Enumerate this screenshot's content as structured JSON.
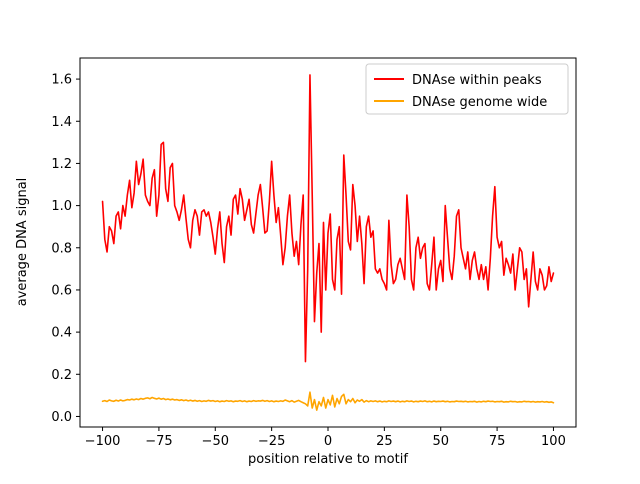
{
  "figure": {
    "xlabel": "position relative to motif",
    "ylabel": "average DNA signal"
  },
  "chart_data": {
    "type": "line",
    "title": "",
    "xlabel": "position relative to motif",
    "ylabel": "average DNA signal",
    "x_start": -100,
    "x_step": 1,
    "n_points": 201,
    "xlim": [
      -110,
      110
    ],
    "ylim": [
      -0.05,
      1.7
    ],
    "xticks": [
      -100,
      -75,
      -50,
      -25,
      0,
      25,
      50,
      75,
      100
    ],
    "yticks": [
      0.0,
      0.2,
      0.4,
      0.6,
      0.8,
      1.0,
      1.2,
      1.4,
      1.6
    ],
    "grid": false,
    "legend_position": "upper right",
    "series": [
      {
        "name": "DNAse within peaks",
        "color": "#ff0000",
        "values": [
          1.02,
          0.84,
          0.78,
          0.9,
          0.88,
          0.82,
          0.95,
          0.97,
          0.89,
          1.0,
          0.95,
          1.05,
          1.12,
          0.99,
          1.06,
          1.21,
          1.1,
          1.15,
          1.22,
          1.05,
          1.02,
          1.0,
          1.13,
          1.17,
          0.95,
          1.05,
          1.29,
          1.3,
          1.08,
          1.02,
          1.18,
          1.2,
          1.0,
          0.97,
          0.93,
          0.98,
          1.05,
          0.94,
          0.84,
          0.8,
          0.93,
          0.98,
          0.95,
          0.86,
          0.97,
          0.98,
          0.95,
          0.97,
          0.92,
          0.85,
          0.77,
          0.89,
          0.97,
          0.82,
          0.73,
          0.9,
          0.95,
          0.86,
          1.03,
          1.05,
          0.96,
          1.08,
          1.03,
          0.93,
          0.98,
          1.03,
          0.91,
          0.87,
          0.96,
          1.05,
          1.1,
          0.99,
          0.87,
          0.88,
          1.02,
          1.21,
          1.05,
          0.92,
          0.99,
          0.86,
          0.72,
          0.8,
          0.95,
          1.05,
          0.87,
          0.76,
          0.83,
          0.72,
          0.91,
          1.05,
          0.26,
          0.7,
          1.62,
          1.05,
          0.45,
          0.68,
          0.82,
          0.4,
          0.92,
          0.6,
          0.87,
          0.96,
          0.65,
          0.6,
          0.84,
          0.9,
          0.58,
          1.24,
          1.05,
          0.83,
          0.79,
          1.1,
          1.0,
          0.83,
          0.95,
          0.82,
          0.63,
          0.9,
          0.95,
          0.85,
          0.88,
          0.7,
          0.68,
          0.7,
          0.65,
          0.63,
          0.6,
          0.93,
          0.72,
          0.63,
          0.65,
          0.72,
          0.75,
          0.7,
          0.65,
          1.05,
          0.9,
          0.65,
          0.6,
          0.8,
          0.85,
          0.75,
          0.8,
          0.82,
          0.63,
          0.6,
          0.72,
          0.85,
          0.6,
          0.7,
          0.74,
          0.64,
          1.0,
          0.85,
          0.7,
          0.65,
          0.76,
          0.95,
          0.98,
          0.8,
          0.75,
          0.7,
          0.78,
          0.65,
          0.74,
          0.78,
          0.7,
          0.65,
          0.72,
          0.65,
          0.71,
          0.6,
          0.75,
          0.95,
          1.09,
          0.85,
          0.8,
          0.83,
          0.67,
          0.75,
          0.72,
          0.68,
          0.77,
          0.6,
          0.7,
          0.8,
          0.78,
          0.65,
          0.7,
          0.52,
          0.65,
          0.78,
          0.64,
          0.6,
          0.7,
          0.67,
          0.6,
          0.62,
          0.71,
          0.64,
          0.68
        ]
      },
      {
        "name": "DNAse genome wide",
        "color": "#ffa500",
        "values": [
          0.072,
          0.075,
          0.071,
          0.078,
          0.074,
          0.072,
          0.077,
          0.073,
          0.078,
          0.074,
          0.076,
          0.08,
          0.078,
          0.082,
          0.079,
          0.083,
          0.08,
          0.085,
          0.082,
          0.086,
          0.088,
          0.084,
          0.09,
          0.086,
          0.083,
          0.087,
          0.082,
          0.085,
          0.08,
          0.083,
          0.079,
          0.082,
          0.078,
          0.08,
          0.076,
          0.079,
          0.075,
          0.078,
          0.074,
          0.077,
          0.073,
          0.076,
          0.072,
          0.075,
          0.071,
          0.074,
          0.072,
          0.076,
          0.073,
          0.075,
          0.071,
          0.074,
          0.07,
          0.073,
          0.071,
          0.075,
          0.072,
          0.074,
          0.07,
          0.073,
          0.072,
          0.075,
          0.071,
          0.074,
          0.07,
          0.073,
          0.071,
          0.075,
          0.072,
          0.074,
          0.073,
          0.076,
          0.072,
          0.075,
          0.071,
          0.074,
          0.07,
          0.073,
          0.071,
          0.074,
          0.072,
          0.078,
          0.074,
          0.07,
          0.075,
          0.068,
          0.072,
          0.076,
          0.07,
          0.065,
          0.06,
          0.05,
          0.115,
          0.04,
          0.08,
          0.03,
          0.07,
          0.05,
          0.09,
          0.04,
          0.08,
          0.055,
          0.1,
          0.045,
          0.085,
          0.06,
          0.095,
          0.105,
          0.06,
          0.08,
          0.07,
          0.085,
          0.065,
          0.078,
          0.072,
          0.08,
          0.068,
          0.075,
          0.07,
          0.074,
          0.071,
          0.074,
          0.07,
          0.073,
          0.069,
          0.072,
          0.07,
          0.074,
          0.071,
          0.073,
          0.07,
          0.073,
          0.069,
          0.072,
          0.07,
          0.074,
          0.071,
          0.073,
          0.069,
          0.072,
          0.07,
          0.073,
          0.071,
          0.074,
          0.07,
          0.072,
          0.069,
          0.073,
          0.07,
          0.072,
          0.071,
          0.073,
          0.07,
          0.072,
          0.069,
          0.071,
          0.07,
          0.073,
          0.071,
          0.072,
          0.07,
          0.072,
          0.069,
          0.071,
          0.07,
          0.072,
          0.068,
          0.071,
          0.069,
          0.072,
          0.07,
          0.073,
          0.071,
          0.072,
          0.069,
          0.071,
          0.07,
          0.072,
          0.068,
          0.07,
          0.069,
          0.072,
          0.07,
          0.071,
          0.068,
          0.07,
          0.069,
          0.072,
          0.07,
          0.071,
          0.069,
          0.071,
          0.068,
          0.07,
          0.069,
          0.071,
          0.068,
          0.07,
          0.067,
          0.069,
          0.065
        ]
      }
    ]
  }
}
